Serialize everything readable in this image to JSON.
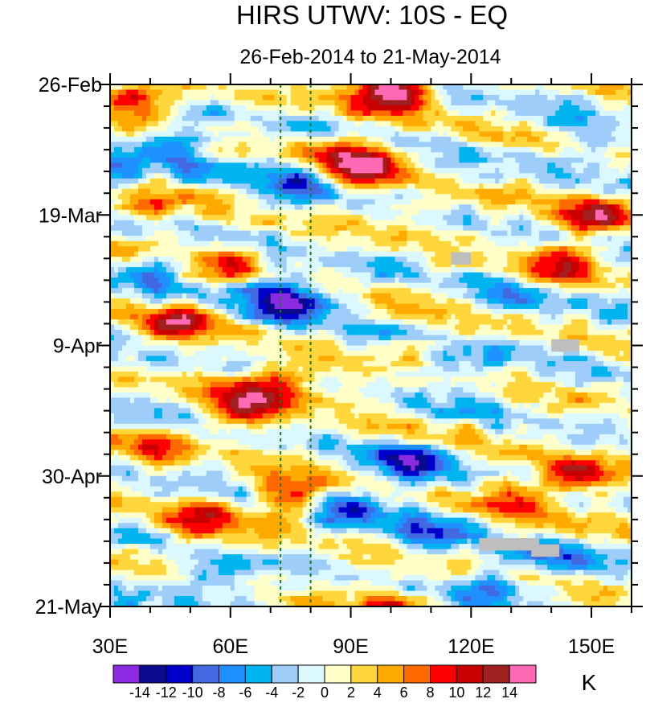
{
  "chart_data": {
    "type": "heatmap",
    "title": "HIRS UTWV: 10S - EQ",
    "subtitle": "26-Feb-2014 to 21-May-2014",
    "xlabel": "",
    "ylabel": "",
    "x_range": [
      30,
      160
    ],
    "y_range_days": [
      0,
      84
    ],
    "x_ticks": [
      {
        "value": 30,
        "label": "30E"
      },
      {
        "value": 60,
        "label": "60E"
      },
      {
        "value": 90,
        "label": "90E"
      },
      {
        "value": 120,
        "label": "120E"
      },
      {
        "value": 150,
        "label": "150E"
      }
    ],
    "y_ticks": [
      {
        "day": 0,
        "label": "26-Feb"
      },
      {
        "day": 21,
        "label": "19-Mar"
      },
      {
        "day": 42,
        "label": "9-Apr"
      },
      {
        "day": 63,
        "label": "30-Apr"
      },
      {
        "day": 84,
        "label": "21-May"
      }
    ],
    "reference_lines_lon": [
      72.5,
      80
    ],
    "colorbar": {
      "unit": "K",
      "levels": [
        -14,
        -12,
        -10,
        -8,
        -6,
        -4,
        -2,
        0,
        2,
        4,
        6,
        8,
        10,
        12,
        14
      ],
      "colors": [
        "#8a2be2",
        "#0a0a8c",
        "#0000cd",
        "#4169e1",
        "#1e90ff",
        "#00b4f0",
        "#9ecdfa",
        "#dcf8ff",
        "#ffffc8",
        "#ffd73c",
        "#ffaa00",
        "#ff6a00",
        "#ff0000",
        "#c80000",
        "#a02020",
        "#ff69b4"
      ]
    },
    "features": [
      {
        "lon": 37,
        "day": 2,
        "value": 11,
        "name": "top-left warm"
      },
      {
        "lon": 98,
        "day": 1,
        "value": 11,
        "name": "top center warm"
      },
      {
        "lon": 104,
        "day": 1.5,
        "value": 9
      },
      {
        "lon": 95,
        "day": 13,
        "value": 12,
        "name": "mid-March warm"
      },
      {
        "lon": 88,
        "day": 11,
        "value": 8
      },
      {
        "lon": 40,
        "day": 20,
        "value": 6
      },
      {
        "lon": 150,
        "day": 21,
        "value": 11,
        "name": "east warm band"
      },
      {
        "lon": 143,
        "day": 29,
        "value": 9
      },
      {
        "lon": 60,
        "day": 28,
        "value": 8
      },
      {
        "lon": 48,
        "day": 38,
        "value": 12,
        "name": "early-April warm"
      },
      {
        "lon": 72,
        "day": 48,
        "value": 12,
        "name": "mid-April warm"
      },
      {
        "lon": 62,
        "day": 52,
        "value": 9
      },
      {
        "lon": 40,
        "day": 58,
        "value": 8
      },
      {
        "lon": 52,
        "day": 70,
        "value": 10
      },
      {
        "lon": 76,
        "day": 66,
        "value": 10
      },
      {
        "lon": 130,
        "day": 66,
        "value": 8
      },
      {
        "lon": 146,
        "day": 63,
        "value": 10
      },
      {
        "lon": 100,
        "day": 84,
        "value": 8
      },
      {
        "lon": 47,
        "day": 10,
        "value": -8,
        "name": "early-March cold"
      },
      {
        "lon": 75,
        "day": 16,
        "value": -8
      },
      {
        "lon": 75,
        "day": 35,
        "value": -12,
        "name": "cold spot near 75E"
      },
      {
        "lon": 70,
        "day": 33,
        "value": -7
      },
      {
        "lon": 40,
        "day": 30,
        "value": -6
      },
      {
        "lon": 32,
        "day": 14,
        "value": -6
      },
      {
        "lon": 128,
        "day": 34,
        "value": -6
      },
      {
        "lon": 120,
        "day": 46,
        "value": -5
      },
      {
        "lon": 105,
        "day": 61,
        "value": -12,
        "name": "cold spot near 105E"
      },
      {
        "lon": 90,
        "day": 68,
        "value": -9
      },
      {
        "lon": 110,
        "day": 72,
        "value": -6
      },
      {
        "lon": 140,
        "day": 76,
        "value": -7
      },
      {
        "lon": 125,
        "day": 80,
        "value": -6
      },
      {
        "lon": 55,
        "day": 80,
        "value": -5
      },
      {
        "lon": 150,
        "day": 10,
        "value": -5
      }
    ],
    "missing_data": [
      {
        "lon_range": [
          115,
          120
        ],
        "day_range": [
          27,
          29
        ]
      },
      {
        "lon_range": [
          140,
          147
        ],
        "day_range": [
          41,
          43
        ]
      },
      {
        "lon_range": [
          122,
          137
        ],
        "day_range": [
          73,
          75
        ]
      },
      {
        "lon_range": [
          135,
          142
        ],
        "day_range": [
          74,
          76
        ]
      }
    ]
  }
}
